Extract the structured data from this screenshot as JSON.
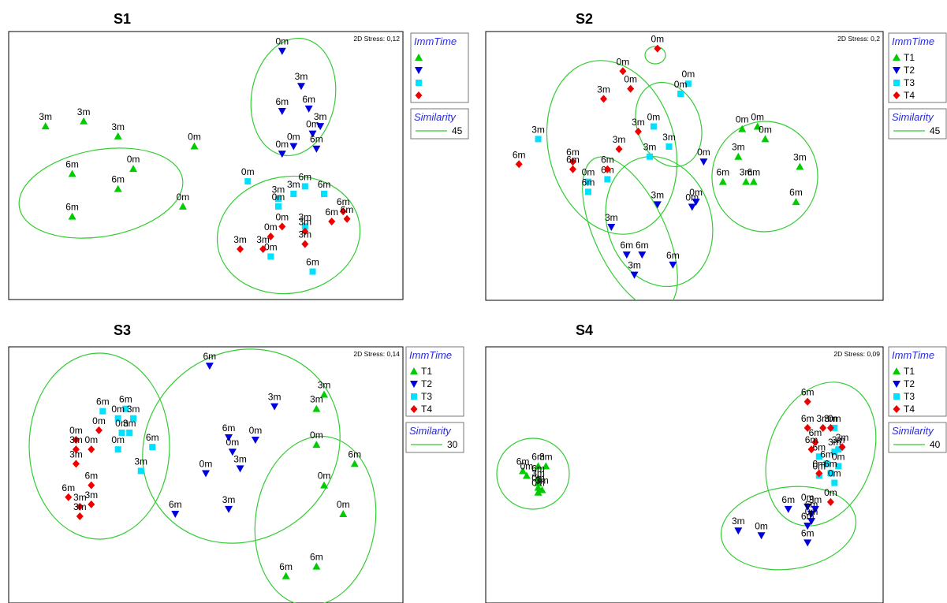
{
  "colors": {
    "T1": "#00cc00",
    "T2": "#0000dd",
    "T3": "#00e0ff",
    "T4": "#ee0000",
    "ellipse": "#33cc33",
    "legend_title": "#2a2ad8"
  },
  "chart_data": [
    {
      "type": "scatter",
      "title": "S1",
      "stress": "2D Stress: 0,12",
      "legend": {
        "title": "ImmTime",
        "labels": [
          "",
          "",
          "",
          ""
        ]
      },
      "similarity": {
        "title": "Similarity",
        "value": "45"
      },
      "series": [
        {
          "group": "T1",
          "points": [
            {
              "x": 0.08,
              "y": 0.66,
              "label": "3m"
            },
            {
              "x": 0.18,
              "y": 0.68,
              "label": "3m"
            },
            {
              "x": 0.15,
              "y": 0.47,
              "label": "6m"
            },
            {
              "x": 0.27,
              "y": 0.62,
              "label": "3m"
            },
            {
              "x": 0.31,
              "y": 0.49,
              "label": "0m"
            },
            {
              "x": 0.27,
              "y": 0.41,
              "label": "6m"
            },
            {
              "x": 0.47,
              "y": 0.58,
              "label": "0m"
            },
            {
              "x": 0.44,
              "y": 0.34,
              "label": "0m"
            },
            {
              "x": 0.15,
              "y": 0.3,
              "label": "6m"
            }
          ]
        },
        {
          "group": "T2",
          "points": [
            {
              "x": 0.7,
              "y": 0.96,
              "label": "0m"
            },
            {
              "x": 0.75,
              "y": 0.82,
              "label": "3m"
            },
            {
              "x": 0.7,
              "y": 0.72,
              "label": "6m"
            },
            {
              "x": 0.77,
              "y": 0.73,
              "label": "6m"
            },
            {
              "x": 0.8,
              "y": 0.66,
              "label": "3m"
            },
            {
              "x": 0.78,
              "y": 0.63,
              "label": "0m"
            },
            {
              "x": 0.73,
              "y": 0.58,
              "label": "0m"
            },
            {
              "x": 0.7,
              "y": 0.55,
              "label": "0m"
            },
            {
              "x": 0.79,
              "y": 0.57,
              "label": "6m"
            }
          ]
        },
        {
          "group": "T3",
          "points": [
            {
              "x": 0.61,
              "y": 0.44,
              "label": "0m"
            },
            {
              "x": 0.73,
              "y": 0.39,
              "label": "3m"
            },
            {
              "x": 0.69,
              "y": 0.37,
              "label": "3m"
            },
            {
              "x": 0.76,
              "y": 0.42,
              "label": "6m"
            },
            {
              "x": 0.81,
              "y": 0.39,
              "label": "6m"
            },
            {
              "x": 0.69,
              "y": 0.34,
              "label": "0m"
            },
            {
              "x": 0.76,
              "y": 0.26,
              "label": "3m"
            },
            {
              "x": 0.67,
              "y": 0.14,
              "label": "0m"
            },
            {
              "x": 0.78,
              "y": 0.08,
              "label": "6m"
            }
          ]
        },
        {
          "group": "T4",
          "points": [
            {
              "x": 0.86,
              "y": 0.32,
              "label": "6m"
            },
            {
              "x": 0.87,
              "y": 0.29,
              "label": "6m"
            },
            {
              "x": 0.83,
              "y": 0.28,
              "label": "6m"
            },
            {
              "x": 0.7,
              "y": 0.26,
              "label": "0m"
            },
            {
              "x": 0.76,
              "y": 0.24,
              "label": "3m"
            },
            {
              "x": 0.67,
              "y": 0.22,
              "label": "0m"
            },
            {
              "x": 0.59,
              "y": 0.17,
              "label": "3m"
            },
            {
              "x": 0.65,
              "y": 0.17,
              "label": "3m"
            },
            {
              "x": 0.76,
              "y": 0.19,
              "label": "3m"
            }
          ]
        }
      ]
    },
    {
      "type": "scatter",
      "title": "S2",
      "stress": "2D Stress: 0,2",
      "legend": {
        "title": "ImmTime",
        "labels": [
          "T1",
          "T2",
          "T3",
          "T4"
        ]
      },
      "similarity": {
        "title": "Similarity",
        "value": "45"
      },
      "series": [
        {
          "group": "T1",
          "points": [
            {
              "x": 0.65,
              "y": 0.65,
              "label": "0m"
            },
            {
              "x": 0.69,
              "y": 0.66,
              "label": "0m"
            },
            {
              "x": 0.71,
              "y": 0.61,
              "label": "0m"
            },
            {
              "x": 0.64,
              "y": 0.54,
              "label": "3m"
            },
            {
              "x": 0.8,
              "y": 0.5,
              "label": "3m"
            },
            {
              "x": 0.6,
              "y": 0.44,
              "label": "6m"
            },
            {
              "x": 0.66,
              "y": 0.44,
              "label": "3m"
            },
            {
              "x": 0.68,
              "y": 0.44,
              "label": "6m"
            },
            {
              "x": 0.79,
              "y": 0.36,
              "label": "6m"
            }
          ]
        },
        {
          "group": "T2",
          "points": [
            {
              "x": 0.55,
              "y": 0.52,
              "label": "0m"
            },
            {
              "x": 0.43,
              "y": 0.35,
              "label": "3m"
            },
            {
              "x": 0.52,
              "y": 0.34,
              "label": "0m"
            },
            {
              "x": 0.53,
              "y": 0.36,
              "label": "0m"
            },
            {
              "x": 0.31,
              "y": 0.26,
              "label": "3m"
            },
            {
              "x": 0.35,
              "y": 0.15,
              "label": "6m"
            },
            {
              "x": 0.39,
              "y": 0.15,
              "label": "6m"
            },
            {
              "x": 0.47,
              "y": 0.11,
              "label": "6m"
            },
            {
              "x": 0.37,
              "y": 0.07,
              "label": "3m"
            }
          ]
        },
        {
          "group": "T3",
          "points": [
            {
              "x": 0.51,
              "y": 0.83,
              "label": "0m"
            },
            {
              "x": 0.49,
              "y": 0.79,
              "label": "0m"
            },
            {
              "x": 0.42,
              "y": 0.66,
              "label": "0m"
            },
            {
              "x": 0.12,
              "y": 0.61,
              "label": "3m"
            },
            {
              "x": 0.46,
              "y": 0.58,
              "label": "3m"
            },
            {
              "x": 0.41,
              "y": 0.54,
              "label": "3m"
            },
            {
              "x": 0.3,
              "y": 0.45,
              "label": "6m"
            },
            {
              "x": 0.25,
              "y": 0.44,
              "label": "0m"
            },
            {
              "x": 0.25,
              "y": 0.4,
              "label": "6m"
            }
          ]
        },
        {
          "group": "T4",
          "points": [
            {
              "x": 0.43,
              "y": 0.97,
              "label": "0m"
            },
            {
              "x": 0.34,
              "y": 0.88,
              "label": "0m"
            },
            {
              "x": 0.36,
              "y": 0.81,
              "label": "0m"
            },
            {
              "x": 0.29,
              "y": 0.77,
              "label": "3m"
            },
            {
              "x": 0.38,
              "y": 0.64,
              "label": "3m"
            },
            {
              "x": 0.33,
              "y": 0.57,
              "label": "3m"
            },
            {
              "x": 0.21,
              "y": 0.52,
              "label": "6m"
            },
            {
              "x": 0.3,
              "y": 0.49,
              "label": "6m"
            },
            {
              "x": 0.21,
              "y": 0.49,
              "label": "6m"
            },
            {
              "x": 0.07,
              "y": 0.51,
              "label": "6m"
            }
          ]
        }
      ]
    },
    {
      "type": "scatter",
      "title": "S3",
      "stress": "2D Stress: 0,14",
      "legend": {
        "title": "ImmTime",
        "labels": [
          "T1",
          "T2",
          "T3",
          "T4"
        ]
      },
      "similarity": {
        "title": "Similarity",
        "value": "30"
      },
      "series": [
        {
          "group": "T1",
          "points": [
            {
              "x": 0.81,
              "y": 0.84,
              "label": "3m"
            },
            {
              "x": 0.79,
              "y": 0.78,
              "label": "3m"
            },
            {
              "x": 0.79,
              "y": 0.63,
              "label": "0m"
            },
            {
              "x": 0.89,
              "y": 0.55,
              "label": "6m"
            },
            {
              "x": 0.81,
              "y": 0.46,
              "label": "0m"
            },
            {
              "x": 0.86,
              "y": 0.34,
              "label": "0m"
            },
            {
              "x": 0.79,
              "y": 0.12,
              "label": "6m"
            },
            {
              "x": 0.71,
              "y": 0.08,
              "label": "6m"
            }
          ]
        },
        {
          "group": "T2",
          "points": [
            {
              "x": 0.51,
              "y": 0.96,
              "label": "6m"
            },
            {
              "x": 0.68,
              "y": 0.79,
              "label": "3m"
            },
            {
              "x": 0.56,
              "y": 0.66,
              "label": "6m"
            },
            {
              "x": 0.63,
              "y": 0.65,
              "label": "0m"
            },
            {
              "x": 0.57,
              "y": 0.6,
              "label": "0m"
            },
            {
              "x": 0.59,
              "y": 0.53,
              "label": "3m"
            },
            {
              "x": 0.5,
              "y": 0.51,
              "label": "0m"
            },
            {
              "x": 0.42,
              "y": 0.34,
              "label": "6m"
            },
            {
              "x": 0.56,
              "y": 0.36,
              "label": "3m"
            }
          ]
        },
        {
          "group": "T3",
          "points": [
            {
              "x": 0.23,
              "y": 0.77,
              "label": "6m"
            },
            {
              "x": 0.29,
              "y": 0.78,
              "label": "6m"
            },
            {
              "x": 0.27,
              "y": 0.74,
              "label": "0m"
            },
            {
              "x": 0.31,
              "y": 0.74,
              "label": "3m"
            },
            {
              "x": 0.28,
              "y": 0.68,
              "label": "0m"
            },
            {
              "x": 0.3,
              "y": 0.68,
              "label": "3m"
            },
            {
              "x": 0.36,
              "y": 0.62,
              "label": "6m"
            },
            {
              "x": 0.27,
              "y": 0.61,
              "label": "0m"
            },
            {
              "x": 0.33,
              "y": 0.52,
              "label": "3m"
            }
          ]
        },
        {
          "group": "T4",
          "points": [
            {
              "x": 0.22,
              "y": 0.69,
              "label": "0m"
            },
            {
              "x": 0.16,
              "y": 0.65,
              "label": "0m"
            },
            {
              "x": 0.2,
              "y": 0.61,
              "label": "0m"
            },
            {
              "x": 0.16,
              "y": 0.61,
              "label": "3m"
            },
            {
              "x": 0.16,
              "y": 0.55,
              "label": "3m"
            },
            {
              "x": 0.2,
              "y": 0.46,
              "label": "6m"
            },
            {
              "x": 0.14,
              "y": 0.41,
              "label": "6m"
            },
            {
              "x": 0.2,
              "y": 0.38,
              "label": "3m"
            },
            {
              "x": 0.17,
              "y": 0.37,
              "label": "3m"
            },
            {
              "x": 0.17,
              "y": 0.33,
              "label": "3m"
            }
          ]
        }
      ]
    },
    {
      "type": "scatter",
      "title": "S4",
      "stress": "2D Stress: 0,09",
      "legend": {
        "title": "ImmTime",
        "labels": [
          "T1",
          "T2",
          "T3",
          "T4"
        ]
      },
      "similarity": {
        "title": "Similarity",
        "value": "40"
      },
      "series": [
        {
          "group": "T1",
          "points": [
            {
              "x": 0.08,
              "y": 0.52,
              "label": "6m"
            },
            {
              "x": 0.12,
              "y": 0.54,
              "label": "6m"
            },
            {
              "x": 0.14,
              "y": 0.54,
              "label": "3m"
            },
            {
              "x": 0.09,
              "y": 0.5,
              "label": "0m"
            },
            {
              "x": 0.12,
              "y": 0.49,
              "label": "6m"
            },
            {
              "x": 0.12,
              "y": 0.47,
              "label": "3m"
            },
            {
              "x": 0.12,
              "y": 0.43,
              "label": "0m"
            },
            {
              "x": 0.13,
              "y": 0.44,
              "label": "3m"
            },
            {
              "x": 0.12,
              "y": 0.45,
              "label": "0m"
            }
          ]
        },
        {
          "group": "T2",
          "points": [
            {
              "x": 0.64,
              "y": 0.27,
              "label": "3m"
            },
            {
              "x": 0.7,
              "y": 0.25,
              "label": "0m"
            },
            {
              "x": 0.77,
              "y": 0.36,
              "label": "6m"
            },
            {
              "x": 0.82,
              "y": 0.37,
              "label": "0m"
            },
            {
              "x": 0.83,
              "y": 0.34,
              "label": "6m"
            },
            {
              "x": 0.84,
              "y": 0.36,
              "label": "3m"
            },
            {
              "x": 0.82,
              "y": 0.29,
              "label": "6m"
            },
            {
              "x": 0.83,
              "y": 0.31,
              "label": "0m"
            },
            {
              "x": 0.82,
              "y": 0.22,
              "label": "6m"
            }
          ]
        },
        {
          "group": "T3",
          "points": [
            {
              "x": 0.89,
              "y": 0.7,
              "label": "0m"
            },
            {
              "x": 0.9,
              "y": 0.61,
              "label": "3m"
            },
            {
              "x": 0.89,
              "y": 0.6,
              "label": "3m"
            },
            {
              "x": 0.85,
              "y": 0.58,
              "label": "6m"
            },
            {
              "x": 0.87,
              "y": 0.55,
              "label": "6m"
            },
            {
              "x": 0.9,
              "y": 0.54,
              "label": "0m"
            },
            {
              "x": 0.88,
              "y": 0.51,
              "label": "6m"
            },
            {
              "x": 0.85,
              "y": 0.5,
              "label": "0m"
            },
            {
              "x": 0.89,
              "y": 0.47,
              "label": "0m"
            }
          ]
        },
        {
          "group": "T4",
          "points": [
            {
              "x": 0.82,
              "y": 0.81,
              "label": "6m"
            },
            {
              "x": 0.82,
              "y": 0.7,
              "label": "6m"
            },
            {
              "x": 0.86,
              "y": 0.7,
              "label": "3m"
            },
            {
              "x": 0.88,
              "y": 0.7,
              "label": "3m"
            },
            {
              "x": 0.84,
              "y": 0.64,
              "label": "6m"
            },
            {
              "x": 0.83,
              "y": 0.61,
              "label": "6m"
            },
            {
              "x": 0.91,
              "y": 0.62,
              "label": "3m"
            },
            {
              "x": 0.85,
              "y": 0.51,
              "label": "0m"
            },
            {
              "x": 0.88,
              "y": 0.39,
              "label": "0m"
            }
          ]
        }
      ]
    }
  ]
}
